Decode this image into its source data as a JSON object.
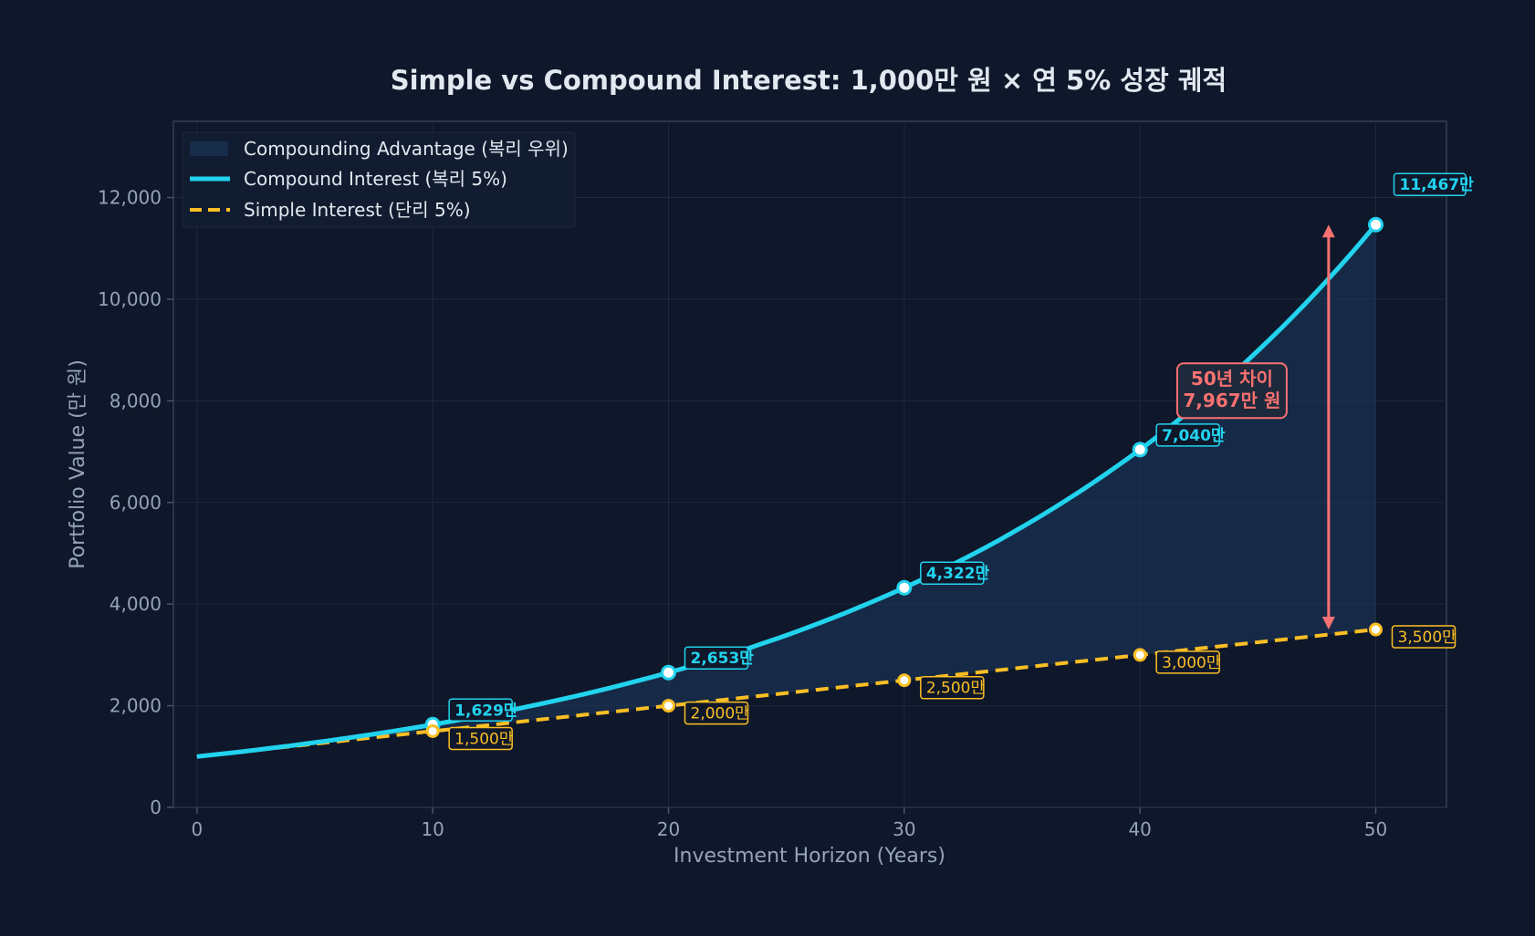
{
  "chart_data": {
    "type": "line",
    "title": "Simple vs Compound Interest: 1,000만 원 × 연 5% 성장 궤적",
    "xlabel": "Investment Horizon (Years)",
    "ylabel": "Portfolio Value (만 원)",
    "xlim": [
      -1,
      53
    ],
    "ylim": [
      0,
      13500
    ],
    "x_ticks": [
      0,
      10,
      20,
      30,
      40,
      50
    ],
    "y_ticks": [
      0,
      2000,
      4000,
      6000,
      8000,
      10000,
      12000
    ],
    "y_tick_labels": [
      "0",
      "2,000",
      "4,000",
      "6,000",
      "8,000",
      "10,000",
      "12,000"
    ],
    "grid": true,
    "legend_position": "top-left",
    "principal": 1000,
    "rate": 0.05,
    "x_range": [
      0,
      50
    ],
    "series": [
      {
        "name": "Compound Interest (복리 5%)",
        "style": "solid",
        "color": "#22d3ee",
        "marker_x": [
          10,
          20,
          30,
          40,
          50
        ],
        "marker_y": [
          1629,
          2653,
          4322,
          7040,
          11467
        ],
        "labels": [
          "1,629만",
          "2,653만",
          "4,322만",
          "7,040만",
          "11,467만"
        ]
      },
      {
        "name": "Simple Interest (단리 5%)",
        "style": "dashed",
        "color": "#fbbf24",
        "marker_x": [
          10,
          20,
          30,
          40,
          50
        ],
        "marker_y": [
          1500,
          2000,
          2500,
          3000,
          3500
        ],
        "labels": [
          "1,500만",
          "2,000만",
          "2,500만",
          "3,000만",
          "3,500만"
        ]
      }
    ],
    "fill": {
      "name": "Compounding Advantage (복리 우위)",
      "color": "#1e3a5f"
    },
    "annotation": {
      "x": 48,
      "y_from": 3500,
      "y_to": 11467,
      "line1": "50년 차이",
      "line2": "7,967만 원",
      "color": "#f87171"
    }
  }
}
